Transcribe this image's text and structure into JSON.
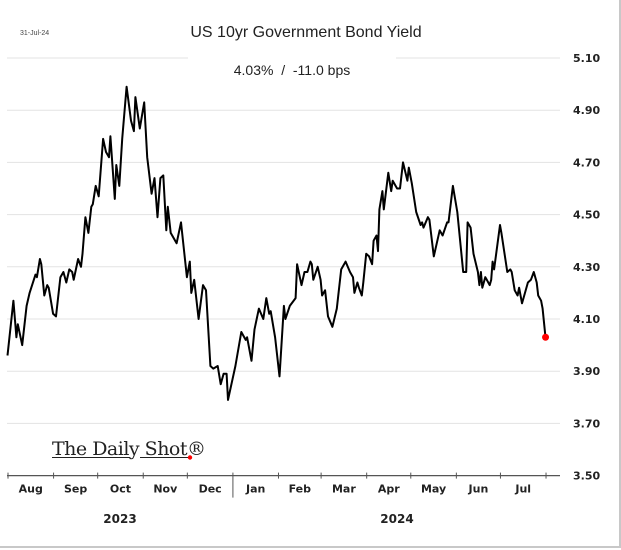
{
  "chart_data": {
    "type": "line",
    "title": "US 10yr Government Bond Yield",
    "subtitle": "4.03%  /  -11.0 bps",
    "date_label": "31-Jul-24",
    "ylim": [
      3.5,
      5.1
    ],
    "y_ticks": [
      "5.10",
      "4.90",
      "4.70",
      "4.50",
      "4.30",
      "4.10",
      "3.90",
      "3.70",
      "3.50"
    ],
    "y_axis_position": "right",
    "grid": true,
    "x_tick_labels": [
      "Aug",
      "Sep",
      "Oct",
      "Nov",
      "Dec",
      "Jan",
      "Feb",
      "Mar",
      "Apr",
      "May",
      "Jun",
      "Jul"
    ],
    "x_year_labels": [
      "2023",
      "2024"
    ],
    "line_color": "#000000",
    "last_point_color": "#ff0000",
    "logo_text": "The Daily Shot®",
    "series": [
      {
        "x": [
          "2023-07-31",
          "2023-08-04",
          "2023-08-06",
          "2023-08-07",
          "2023-08-10",
          "2023-08-13",
          "2023-08-15",
          "2023-08-19",
          "2023-08-20",
          "2023-08-22",
          "2023-08-23",
          "2023-08-25",
          "2023-08-27",
          "2023-08-28",
          "2023-08-31",
          "2023-09-02",
          "2023-09-05",
          "2023-09-07",
          "2023-09-09",
          "2023-09-11",
          "2023-09-13",
          "2023-09-14",
          "2023-09-17",
          "2023-09-19",
          "2023-09-20",
          "2023-09-22",
          "2023-09-24",
          "2023-09-26",
          "2023-09-27",
          "2023-09-29",
          "2023-10-01",
          "2023-10-04",
          "2023-10-06",
          "2023-10-08",
          "2023-10-09",
          "2023-10-12",
          "2023-10-13",
          "2023-10-15",
          "2023-10-17",
          "2023-10-20",
          "2023-10-23",
          "2023-10-25",
          "2023-10-26",
          "2023-10-29",
          "2023-11-01",
          "2023-11-03",
          "2023-11-06",
          "2023-11-08",
          "2023-11-10",
          "2023-11-12",
          "2023-11-14",
          "2023-11-16",
          "2023-11-17",
          "2023-11-19",
          "2023-11-23",
          "2023-11-26",
          "2023-11-30",
          "2023-12-02",
          "2023-12-03",
          "2023-12-05",
          "2023-12-08",
          "2023-12-11",
          "2023-12-13",
          "2023-12-16",
          "2023-12-18",
          "2023-12-21",
          "2023-12-23",
          "2023-12-25",
          "2023-12-27",
          "2023-12-28",
          "2024-01-02",
          "2024-01-06",
          "2024-01-09",
          "2024-01-10",
          "2024-01-13",
          "2024-01-15",
          "2024-01-18",
          "2024-01-21",
          "2024-01-23",
          "2024-01-25",
          "2024-01-26",
          "2024-01-29",
          "2024-02-01",
          "2024-02-04",
          "2024-02-05",
          "2024-02-08",
          "2024-02-12",
          "2024-02-13",
          "2024-02-16",
          "2024-02-18",
          "2024-02-20",
          "2024-02-22",
          "2024-02-23",
          "2024-02-24",
          "2024-02-27",
          "2024-02-29",
          "2024-03-01",
          "2024-03-03",
          "2024-03-05",
          "2024-03-08",
          "2024-03-11",
          "2024-03-14",
          "2024-03-17",
          "2024-03-20",
          "2024-03-22",
          "2024-03-23",
          "2024-03-25",
          "2024-03-26",
          "2024-03-28",
          "2024-03-29",
          "2024-03-31",
          "2024-04-02",
          "2024-04-04",
          "2024-04-05",
          "2024-04-07",
          "2024-04-08",
          "2024-04-09",
          "2024-04-11",
          "2024-04-12",
          "2024-04-15",
          "2024-04-17",
          "2024-04-18",
          "2024-04-21",
          "2024-04-23",
          "2024-04-25",
          "2024-04-28",
          "2024-04-29",
          "2024-05-01",
          "2024-05-04",
          "2024-05-07",
          "2024-05-08",
          "2024-05-09",
          "2024-05-12",
          "2024-05-13",
          "2024-05-16",
          "2024-05-20",
          "2024-05-22",
          "2024-05-25",
          "2024-05-26",
          "2024-05-29",
          "2024-06-01",
          "2024-06-05",
          "2024-06-07",
          "2024-06-08",
          "2024-06-10",
          "2024-06-12",
          "2024-06-15",
          "2024-06-16",
          "2024-06-17",
          "2024-06-18",
          "2024-06-20",
          "2024-06-21",
          "2024-06-23",
          "2024-06-24",
          "2024-06-25",
          "2024-06-26",
          "2024-06-30",
          "2024-07-01",
          "2024-07-05",
          "2024-07-07",
          "2024-07-08",
          "2024-07-10",
          "2024-07-12",
          "2024-07-13",
          "2024-07-15",
          "2024-07-16",
          "2024-07-19",
          "2024-07-21",
          "2024-07-23",
          "2024-07-25",
          "2024-07-26",
          "2024-07-28",
          "2024-07-29",
          "2024-07-31"
        ],
        "y": [
          3.96,
          4.17,
          4.03,
          4.08,
          4.0,
          4.15,
          4.2,
          4.27,
          4.26,
          4.33,
          4.31,
          4.19,
          4.23,
          4.22,
          4.12,
          4.11,
          4.26,
          4.28,
          4.24,
          4.29,
          4.28,
          4.25,
          4.33,
          4.3,
          4.35,
          4.49,
          4.43,
          4.53,
          4.54,
          4.61,
          4.57,
          4.79,
          4.74,
          4.72,
          4.8,
          4.56,
          4.69,
          4.61,
          4.79,
          4.99,
          4.86,
          4.82,
          4.95,
          4.83,
          4.93,
          4.72,
          4.58,
          4.64,
          4.49,
          4.64,
          4.65,
          4.44,
          4.53,
          4.43,
          4.39,
          4.47,
          4.26,
          4.32,
          4.2,
          4.25,
          4.1,
          4.23,
          4.21,
          3.92,
          3.91,
          3.92,
          3.85,
          3.89,
          3.89,
          3.79,
          3.92,
          4.05,
          4.02,
          4.03,
          3.94,
          4.06,
          4.14,
          4.1,
          4.18,
          4.12,
          4.13,
          4.03,
          3.88,
          4.15,
          4.1,
          4.15,
          4.18,
          4.31,
          4.23,
          4.28,
          4.28,
          4.32,
          4.31,
          4.25,
          4.3,
          4.25,
          4.19,
          4.21,
          4.11,
          4.07,
          4.14,
          4.29,
          4.32,
          4.28,
          4.26,
          4.2,
          4.24,
          4.22,
          4.19,
          4.24,
          4.35,
          4.34,
          4.31,
          4.4,
          4.42,
          4.36,
          4.52,
          4.59,
          4.52,
          4.66,
          4.59,
          4.63,
          4.6,
          4.6,
          4.7,
          4.63,
          4.68,
          4.62,
          4.51,
          4.46,
          4.47,
          4.45,
          4.49,
          4.48,
          4.34,
          4.44,
          4.42,
          4.47,
          4.47,
          4.61,
          4.51,
          4.28,
          4.28,
          4.47,
          4.45,
          4.35,
          4.28,
          4.23,
          4.28,
          4.22,
          4.26,
          4.25,
          4.23,
          4.25,
          4.32,
          4.29,
          4.46,
          4.43,
          4.28,
          4.29,
          4.28,
          4.21,
          4.19,
          4.22,
          4.16,
          4.18,
          4.24,
          4.25,
          4.28,
          4.24,
          4.19,
          4.17,
          4.14,
          4.03
        ]
      }
    ]
  }
}
